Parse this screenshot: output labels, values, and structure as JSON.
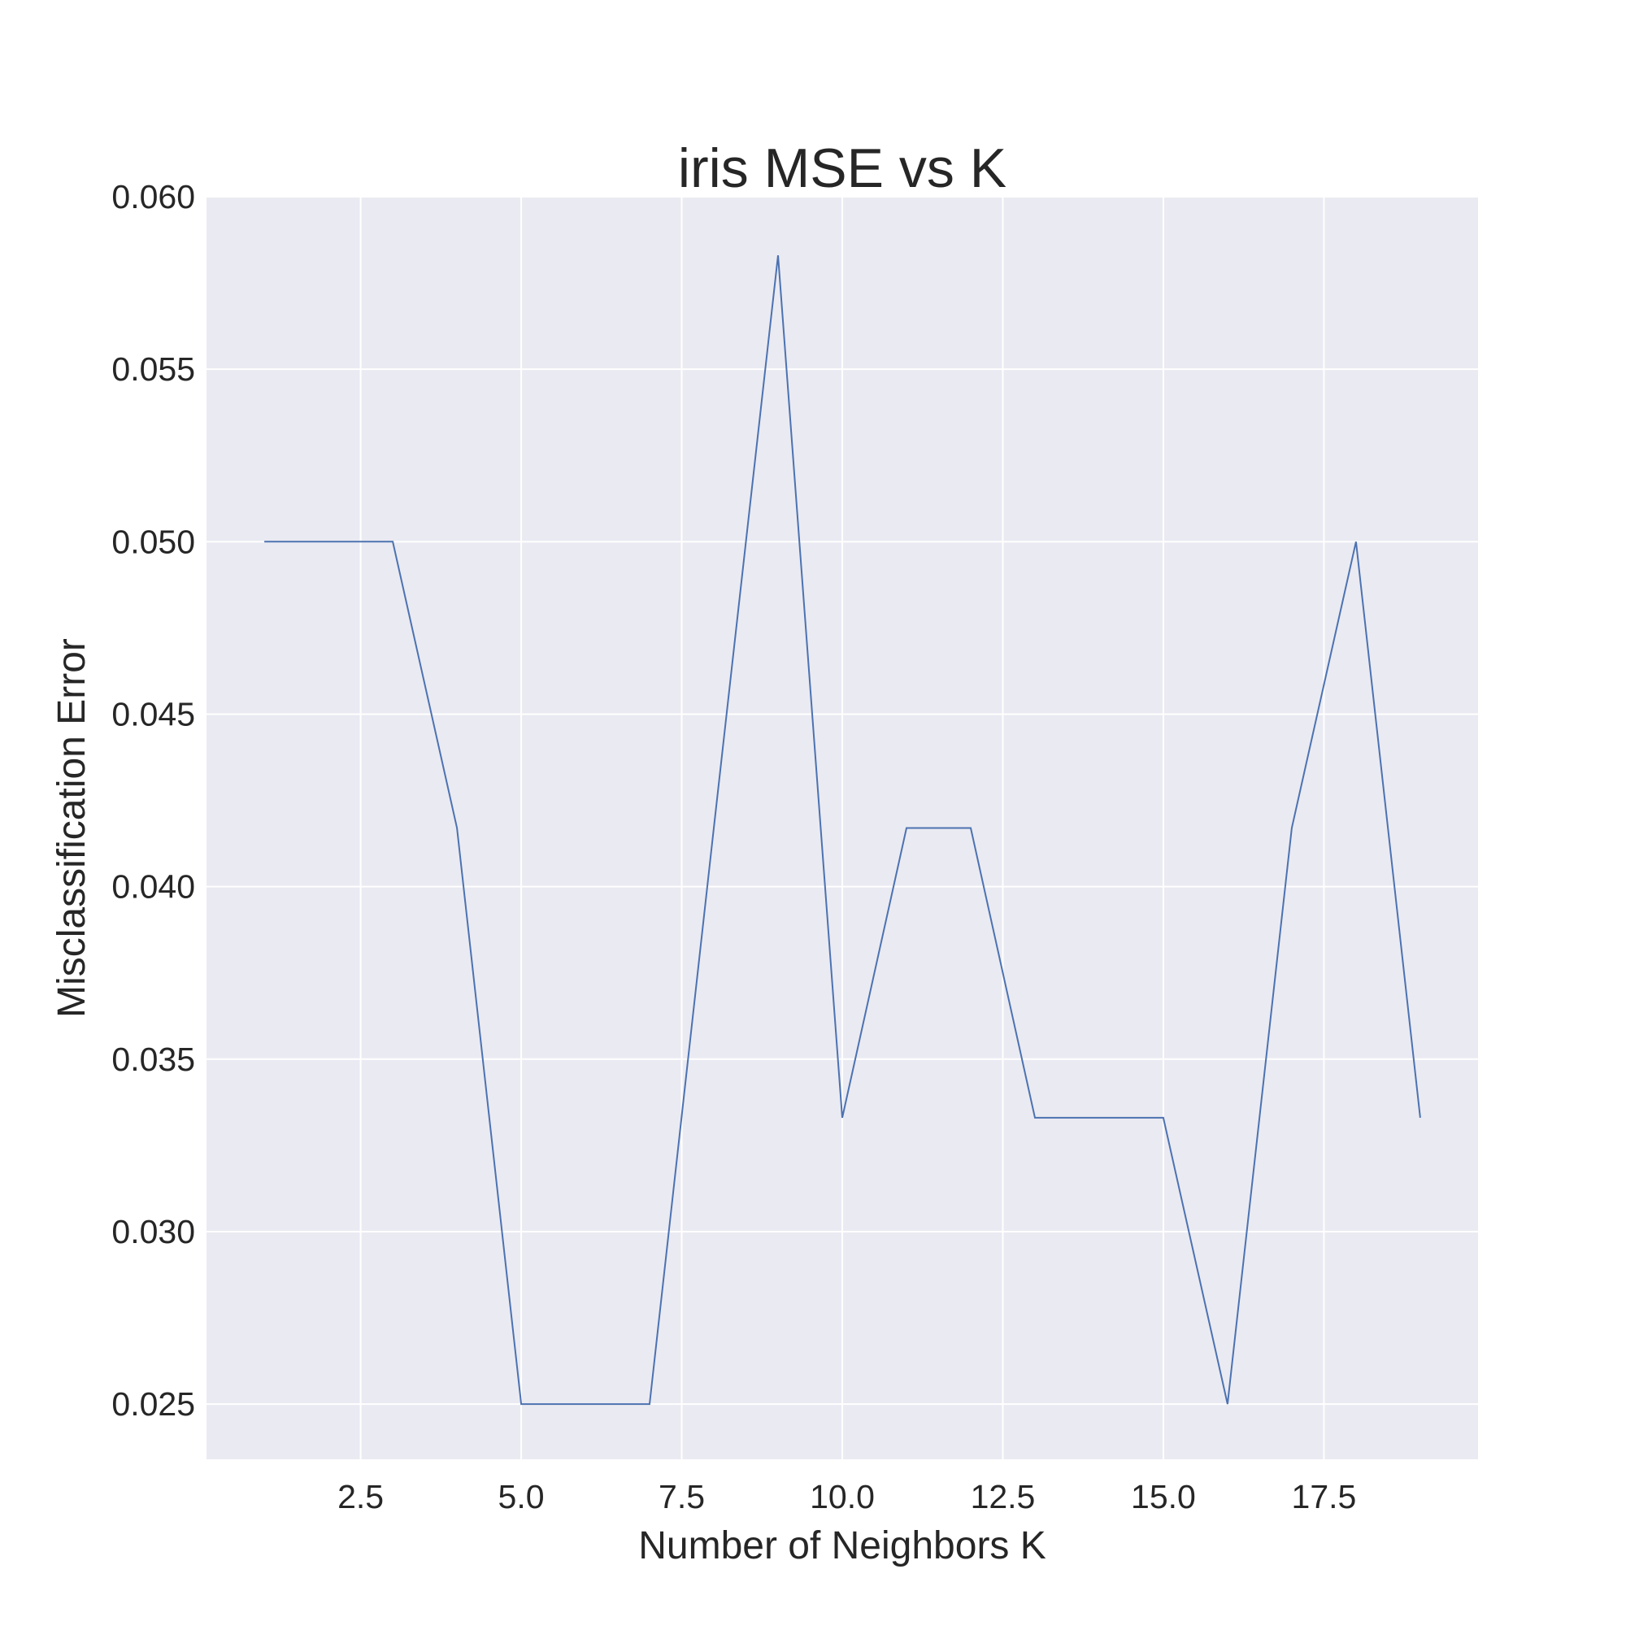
{
  "chart_data": {
    "type": "line",
    "title": "iris MSE vs K",
    "xlabel": "Number of Neighbors K",
    "ylabel": "Misclassification Error",
    "xlim": [
      0.1,
      19.9
    ],
    "ylim": [
      0.0234,
      0.06
    ],
    "xticks": [
      2.5,
      5.0,
      7.5,
      10.0,
      12.5,
      15.0,
      17.5
    ],
    "xtick_labels": [
      "2.5",
      "5.0",
      "7.5",
      "10.0",
      "12.5",
      "15.0",
      "17.5"
    ],
    "yticks": [
      0.025,
      0.03,
      0.035,
      0.04,
      0.045,
      0.05,
      0.055,
      0.06
    ],
    "ytick_labels": [
      "0.025",
      "0.030",
      "0.035",
      "0.040",
      "0.045",
      "0.050",
      "0.055",
      "0.060"
    ],
    "grid": true,
    "background": "#eaeaf2",
    "grid_color": "#ffffff",
    "line_color": "#4c72b0",
    "series": [
      {
        "x": [
          1,
          2,
          3,
          4,
          5,
          6,
          7,
          8,
          9,
          10,
          11,
          12,
          13,
          14,
          15,
          16,
          17,
          18,
          19
        ],
        "values": [
          0.05,
          0.05,
          0.05,
          0.0417,
          0.025,
          0.025,
          0.025,
          0.0417,
          0.0583,
          0.0333,
          0.0417,
          0.0417,
          0.0333,
          0.0333,
          0.0333,
          0.025,
          0.0417,
          0.05,
          0.0333
        ]
      }
    ]
  }
}
